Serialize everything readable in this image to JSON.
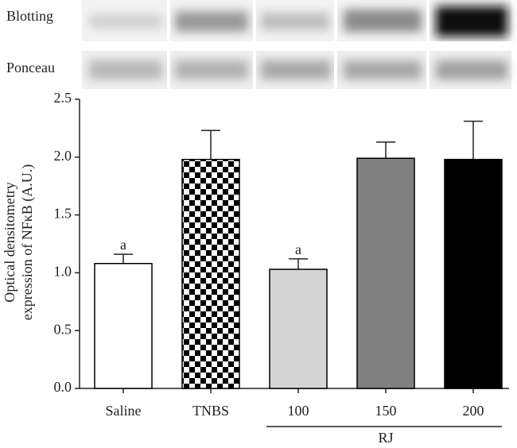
{
  "blot_rows": [
    "Blotting",
    "Ponceau"
  ],
  "chart_data": {
    "type": "bar",
    "y_label": [
      "Optical densitometry",
      "expression of NFκB (A.U.)"
    ],
    "categories": [
      "Saline",
      "TNBS",
      "100",
      "150",
      "200"
    ],
    "values": [
      1.08,
      1.98,
      1.03,
      1.99,
      1.98
    ],
    "errors": [
      0.08,
      0.25,
      0.09,
      0.14,
      0.33
    ],
    "bar_labels": [
      "a",
      null,
      "a",
      null,
      null
    ],
    "colors": [
      "#ffffff",
      "checker",
      "#d4d4d4",
      "#808080",
      "#000000"
    ],
    "groups": [
      {
        "label": "RJ",
        "from": "100",
        "to": "200"
      }
    ],
    "ylim": [
      0,
      2.5
    ],
    "yticks": [
      {
        "value": 0,
        "label": "0.0"
      },
      0.5,
      {
        "value": 1,
        "label": "1.0"
      },
      1.5,
      {
        "value": 2,
        "label": "2.0"
      },
      2.5
    ]
  }
}
